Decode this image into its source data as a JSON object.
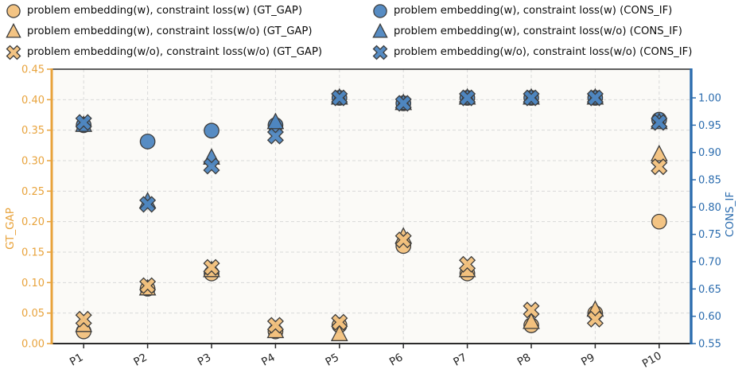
{
  "chart_data": {
    "type": "scatter",
    "categories": [
      "P1",
      "P2",
      "P3",
      "P4",
      "P5",
      "P6",
      "P7",
      "P8",
      "P9",
      "P10"
    ],
    "grid": true,
    "legend_position": "top",
    "plot_bg": "#fbfaf7",
    "grid_color": "#d9d9d9",
    "x_tick_rotation": -30,
    "x_tick_color": "#262626",
    "left_axis": {
      "label": "GT_GAP",
      "color": "#E8A33C",
      "min": 0.0,
      "max": 0.45,
      "ticks": [
        0.0,
        0.05,
        0.1,
        0.15,
        0.2,
        0.25,
        0.3,
        0.35,
        0.4,
        0.45
      ]
    },
    "right_axis": {
      "label": "CONS_IF",
      "color": "#2B6CAE",
      "min": 0.55,
      "max": 1.0525,
      "ticks": [
        0.55,
        0.6,
        0.65,
        0.7,
        0.75,
        0.8,
        0.85,
        0.9,
        0.95,
        1.0
      ]
    },
    "marker_edge_color": "#3C3C3C",
    "series": [
      {
        "name": "problem embedding(w), constraint loss(w) (GT_GAP)",
        "axis": "left",
        "marker": "circle",
        "color": "#F2C17D",
        "values": [
          0.02,
          0.09,
          0.115,
          0.02,
          0.03,
          0.16,
          0.115,
          0.03,
          0.05,
          0.2
        ]
      },
      {
        "name": "problem embedding(w), constraint loss(w/o) (GT_GAP)",
        "axis": "left",
        "marker": "triangle",
        "color": "#F2C17D",
        "values": [
          0.03,
          0.09,
          0.12,
          0.02,
          0.015,
          0.175,
          0.12,
          0.035,
          0.055,
          0.31
        ]
      },
      {
        "name": "problem embedding(w/o), constraint loss(w/o) (GT_GAP)",
        "axis": "left",
        "marker": "x",
        "color": "#F2C17D",
        "values": [
          0.04,
          0.095,
          0.125,
          0.03,
          0.035,
          0.17,
          0.13,
          0.055,
          0.04,
          0.29
        ]
      },
      {
        "name": "problem embedding(w), constraint loss(w) (CONS_IF)",
        "axis": "right",
        "marker": "circle",
        "color": "#4E86C0",
        "values": [
          0.95,
          0.92,
          0.94,
          0.95,
          1.0,
          0.99,
          1.0,
          1.0,
          1.0,
          0.96
        ]
      },
      {
        "name": "problem embedding(w), constraint loss(w/o) (CONS_IF)",
        "axis": "right",
        "marker": "triangle",
        "color": "#4E86C0",
        "values": [
          0.95,
          0.81,
          0.89,
          0.955,
          1.0,
          0.99,
          1.0,
          1.0,
          1.0,
          0.955
        ]
      },
      {
        "name": "problem embedding(w/o), constraint loss(w/o) (CONS_IF)",
        "axis": "right",
        "marker": "x",
        "color": "#4E86C0",
        "values": [
          0.955,
          0.805,
          0.875,
          0.93,
          1.0,
          0.99,
          1.0,
          1.0,
          1.0,
          0.955
        ]
      }
    ]
  }
}
